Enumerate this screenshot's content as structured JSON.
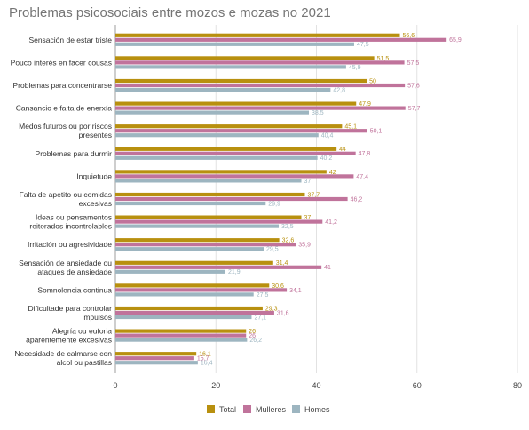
{
  "chart_data": {
    "type": "bar",
    "orientation": "horizontal",
    "title": "Problemas psicosociais entre mozos e mozas no 2021",
    "categories": [
      [
        "Sensación de estar triste"
      ],
      [
        "Pouco interés en facer cousas"
      ],
      [
        "Problemas para concentrarse"
      ],
      [
        "Cansancio e falta de enerxía"
      ],
      [
        "Medos futuros ou por riscos",
        "presentes"
      ],
      [
        "Problemas para durmir"
      ],
      [
        "Inquietude"
      ],
      [
        "Falta de apetito ou comidas",
        "excesivas"
      ],
      [
        "Ideas ou pensamentos",
        "reiterados incontrolables"
      ],
      [
        "Irritación ou agresividade"
      ],
      [
        "Sensación de ansiedade ou",
        "ataques de ansiedade"
      ],
      [
        "Somnolencia continua"
      ],
      [
        "Dificultade para controlar",
        "impulsos"
      ],
      [
        "Alegría ou euforia",
        "aparentemente excesivas"
      ],
      [
        "Necesidade de calmarse con",
        "alcol ou pastillas"
      ]
    ],
    "series": [
      {
        "name": "Total",
        "color": "#b8900f",
        "values": [
          56.6,
          51.5,
          50,
          47.9,
          45.1,
          44,
          42,
          37.7,
          37,
          32.6,
          31.4,
          30.6,
          29.3,
          26,
          16.1
        ],
        "labels": [
          "56,6",
          "51,5",
          "50",
          "47,9",
          "45,1",
          "44",
          "42",
          "37,7",
          "37",
          "32,6",
          "31,4",
          "30,6",
          "29,3",
          "26",
          "16,1"
        ]
      },
      {
        "name": "Mulleres",
        "color": "#c0739b",
        "values": [
          65.9,
          57.5,
          57.6,
          57.7,
          50.1,
          47.8,
          47.4,
          46.2,
          41.2,
          35.9,
          41,
          34.1,
          31.6,
          26,
          15.7
        ],
        "labels": [
          "65,9",
          "57,5",
          "57,6",
          "57,7",
          "50,1",
          "47,8",
          "47,4",
          "46,2",
          "41,2",
          "35,9",
          "41",
          "34,1",
          "31,6",
          "26",
          "15,7"
        ]
      },
      {
        "name": "Homes",
        "color": "#9db5c0",
        "values": [
          47.5,
          45.9,
          42.8,
          38.5,
          40.4,
          40.2,
          37,
          29.9,
          32.5,
          29.5,
          21.9,
          27.5,
          27.1,
          26.2,
          16.4
        ],
        "labels": [
          "47,5",
          "45,9",
          "42,8",
          "38,5",
          "40,4",
          "40,2",
          "37",
          "29,9",
          "32,5",
          "29,5",
          "21,9",
          "27,5",
          "27,1",
          "26,2",
          "16,4"
        ]
      }
    ],
    "xlim": [
      0,
      80
    ],
    "xticks": [
      0,
      20,
      40,
      60,
      80
    ],
    "grid": true,
    "legend_position": "bottom"
  }
}
